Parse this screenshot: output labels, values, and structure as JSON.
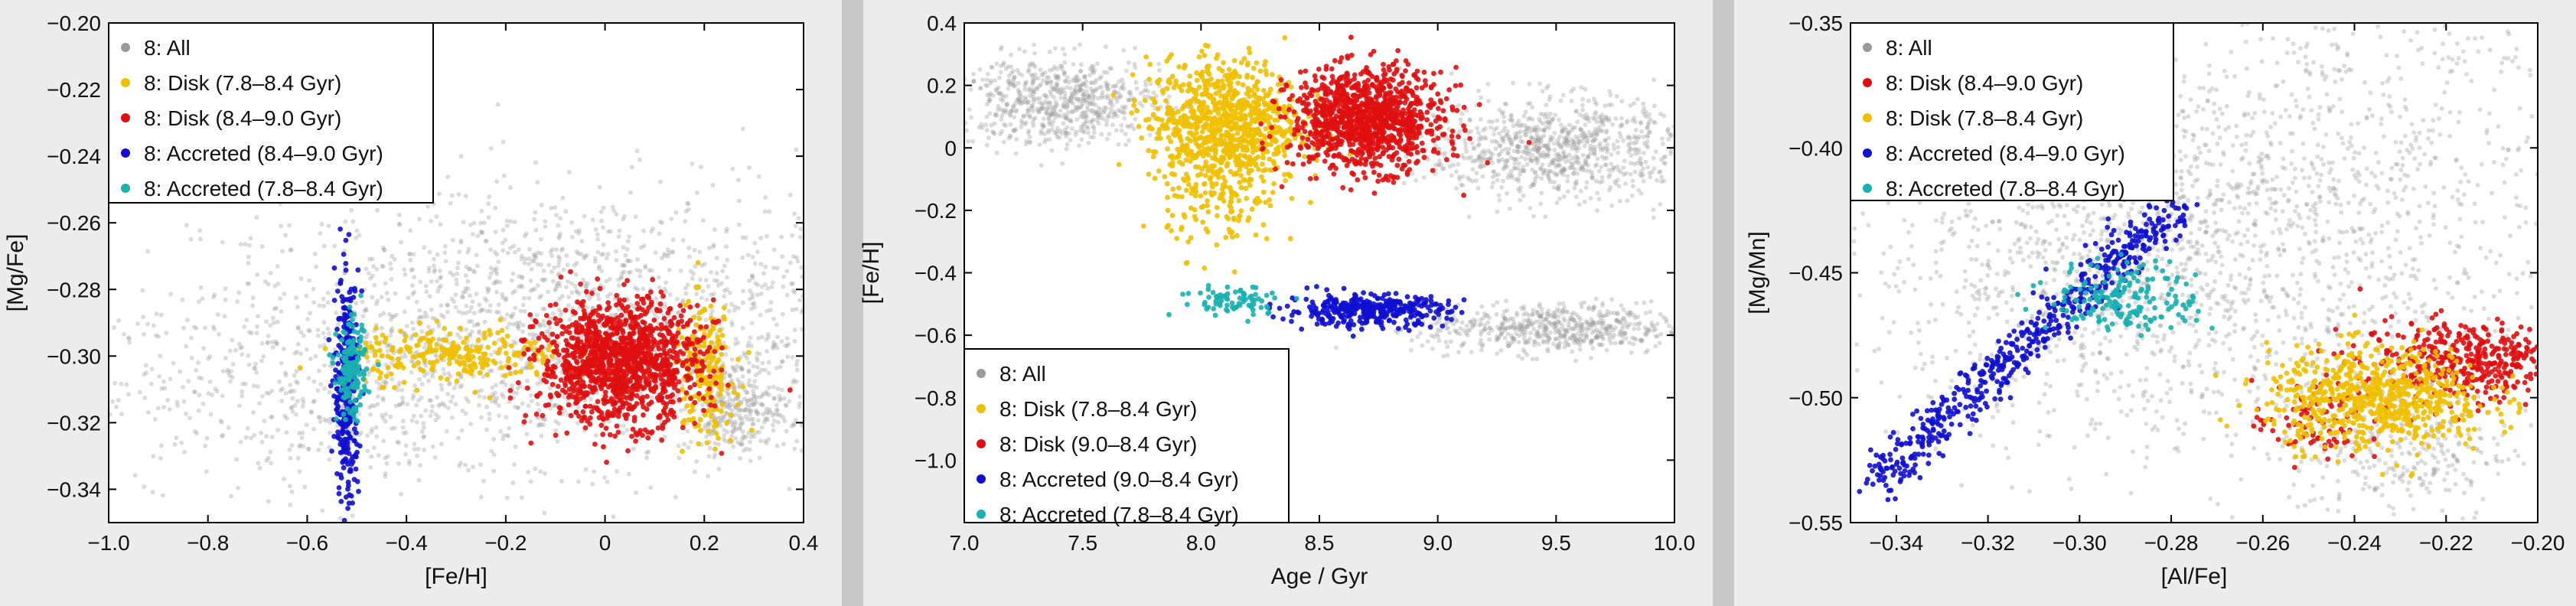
{
  "colors": {
    "all": "#9a9a9a",
    "disk_young": "#f0c000",
    "disk_old": "#e01010",
    "accreted_old": "#1010d0",
    "accreted_young": "#18b0b0"
  },
  "chart_data": [
    {
      "type": "scatter",
      "xlabel": "[Fe/H]",
      "ylabel": "[Mg/Fe]",
      "xlim": [
        -1.0,
        0.4
      ],
      "ylim": [
        -0.35,
        -0.2
      ],
      "xticks": [
        "−1.0",
        "−0.8",
        "−0.6",
        "−0.4",
        "−0.2",
        "0",
        "0.2",
        "0.4"
      ],
      "xtick_values": [
        -1.0,
        -0.8,
        -0.6,
        -0.4,
        -0.2,
        0,
        0.2,
        0.4
      ],
      "yticks": [
        "−0.20",
        "−0.22",
        "−0.24",
        "−0.26",
        "−0.28",
        "−0.30",
        "−0.32",
        "−0.34"
      ],
      "ytick_values": [
        -0.2,
        -0.22,
        -0.24,
        -0.26,
        -0.28,
        -0.3,
        -0.32,
        -0.34
      ],
      "legend_position": "top-left",
      "legend": [
        "8: All",
        "8: Disk (7.8–8.4 Gyr)",
        "8: Disk (8.4–9.0 Gyr)",
        "8: Accreted (8.4–9.0 Gyr)",
        "8: Accreted (7.8–8.4 Gyr)"
      ],
      "series": [
        {
          "name": "8: All",
          "color_key": "all",
          "clouds": [
            {
              "cx": -0.05,
              "cy": -0.29,
              "sx": 0.38,
              "sy": 0.02,
              "n": 1800
            },
            {
              "cx": 0.26,
              "cy": -0.315,
              "sx": 0.05,
              "sy": 0.007,
              "n": 300
            },
            {
              "cx": -0.55,
              "cy": -0.31,
              "sx": 0.25,
              "sy": 0.015,
              "n": 500
            }
          ]
        },
        {
          "name": "8: Disk (7.8–8.4 Gyr)",
          "color_key": "disk_young",
          "clouds": [
            {
              "cx": -0.3,
              "cy": -0.3,
              "sx": 0.11,
              "sy": 0.004,
              "n": 260
            },
            {
              "cx": 0.2,
              "cy": -0.305,
              "sx": 0.03,
              "sy": 0.01,
              "n": 200
            }
          ]
        },
        {
          "name": "8: Disk (8.4–9.0 Gyr)",
          "color_key": "disk_old",
          "clouds": [
            {
              "cx": 0.03,
              "cy": -0.302,
              "sx": 0.08,
              "sy": 0.009,
              "n": 1300
            }
          ]
        },
        {
          "name": "8: Accreted (8.4–9.0 Gyr)",
          "color_key": "accreted_old",
          "clouds": [
            {
              "cx": -0.52,
              "cy": -0.31,
              "sx": 0.012,
              "sy": 0.017,
              "n": 320
            }
          ]
        },
        {
          "name": "8: Accreted (7.8–8.4 Gyr)",
          "color_key": "accreted_young",
          "clouds": [
            {
              "cx": -0.51,
              "cy": -0.305,
              "sx": 0.015,
              "sy": 0.007,
              "n": 160
            }
          ]
        }
      ]
    },
    {
      "type": "scatter",
      "xlabel": "Age / Gyr",
      "ylabel": "[Fe/H]",
      "xlim": [
        7.0,
        10.0
      ],
      "ylim": [
        -1.2,
        0.4
      ],
      "xticks": [
        "7.0",
        "7.5",
        "8.0",
        "8.5",
        "9.0",
        "9.5",
        "10.0"
      ],
      "xtick_values": [
        7.0,
        7.5,
        8.0,
        8.5,
        9.0,
        9.5,
        10.0
      ],
      "yticks": [
        "0.4",
        "0.2",
        "0",
        "−0.2",
        "−0.4",
        "−0.6",
        "−0.8",
        "−1.0"
      ],
      "ytick_values": [
        0.4,
        0.2,
        0,
        -0.2,
        -0.4,
        -0.6,
        -0.8,
        -1.0
      ],
      "legend_position": "bottom-left",
      "legend": [
        "8: All",
        "8: Disk (7.8–8.4 Gyr)",
        "8: Disk (9.0–8.4 Gyr)",
        "8: Accreted (9.0–8.4 Gyr)",
        "8: Accreted (7.8–8.4 Gyr)"
      ],
      "series": [
        {
          "name": "8: All",
          "color_key": "all",
          "clouds": [
            {
              "cx": 7.4,
              "cy": 0.15,
              "sx": 0.22,
              "sy": 0.07,
              "n": 700
            },
            {
              "cx": 9.5,
              "cy": 0.0,
              "sx": 0.28,
              "sy": 0.08,
              "n": 900
            },
            {
              "cx": 9.5,
              "cy": -0.58,
              "sx": 0.28,
              "sy": 0.04,
              "n": 600
            }
          ]
        },
        {
          "name": "8: Disk (7.8–8.4 Gyr)",
          "color_key": "disk_young",
          "clouds": [
            {
              "cx": 8.1,
              "cy": 0.08,
              "sx": 0.16,
              "sy": 0.1,
              "n": 900
            },
            {
              "cx": 8.1,
              "cy": -0.18,
              "sx": 0.12,
              "sy": 0.08,
              "n": 120
            }
          ]
        },
        {
          "name": "8: Disk (9.0–8.4 Gyr)",
          "color_key": "disk_old",
          "clouds": [
            {
              "cx": 8.7,
              "cy": 0.09,
              "sx": 0.16,
              "sy": 0.08,
              "n": 1100
            }
          ]
        },
        {
          "name": "8: Accreted (9.0–8.4 Gyr)",
          "color_key": "accreted_old",
          "clouds": [
            {
              "cx": 8.7,
              "cy": -0.52,
              "sx": 0.17,
              "sy": 0.025,
              "n": 350
            }
          ]
        },
        {
          "name": "8: Accreted (7.8–8.4 Gyr)",
          "color_key": "accreted_young",
          "clouds": [
            {
              "cx": 8.15,
              "cy": -0.49,
              "sx": 0.12,
              "sy": 0.025,
              "n": 80
            }
          ]
        }
      ]
    },
    {
      "type": "scatter",
      "xlabel": "[Al/Fe]",
      "ylabel": "[Mg/Mn]",
      "xlim": [
        -0.35,
        -0.2
      ],
      "ylim": [
        -0.55,
        -0.35
      ],
      "xticks": [
        "−0.34",
        "−0.32",
        "−0.30",
        "−0.28",
        "−0.26",
        "−0.24",
        "−0.22",
        "−0.20"
      ],
      "xtick_values": [
        -0.34,
        -0.32,
        -0.3,
        -0.28,
        -0.26,
        -0.24,
        -0.22,
        -0.2
      ],
      "yticks": [
        "−0.35",
        "−0.40",
        "−0.45",
        "−0.50",
        "−0.55"
      ],
      "ytick_values": [
        -0.35,
        -0.4,
        -0.45,
        -0.5,
        -0.55
      ],
      "legend_position": "top-left",
      "legend": [
        "8: All",
        "8: Disk (8.4–9.0 Gyr)",
        "8: Disk (7.8–8.4 Gyr)",
        "8: Accreted (8.4–9.0 Gyr)",
        "8: Accreted (7.8–8.4 Gyr)"
      ],
      "series": [
        {
          "name": "8: All",
          "color_key": "all",
          "clouds": [
            {
              "cx": -0.29,
              "cy": -0.44,
              "sx": 0.03,
              "sy": 0.04,
              "n": 1500
            },
            {
              "cx": -0.24,
              "cy": -0.42,
              "sx": 0.03,
              "sy": 0.05,
              "n": 900
            },
            {
              "cx": -0.23,
              "cy": -0.52,
              "sx": 0.012,
              "sy": 0.015,
              "n": 300
            }
          ]
        },
        {
          "name": "8: Disk (8.4–9.0 Gyr)",
          "color_key": "disk_old",
          "clouds": [
            {
              "cx": -0.215,
              "cy": -0.485,
              "sx": 0.012,
              "sy": 0.008,
              "n": 450
            },
            {
              "cx": -0.25,
              "cy": -0.51,
              "sx": 0.006,
              "sy": 0.008,
              "n": 80
            }
          ]
        },
        {
          "name": "8: Disk (7.8–8.4 Gyr)",
          "color_key": "disk_young",
          "clouds": [
            {
              "cx": -0.235,
              "cy": -0.5,
              "sx": 0.012,
              "sy": 0.01,
              "n": 700
            }
          ]
        },
        {
          "name": "8: Accreted (8.4–9.0 Gyr)",
          "color_key": "accreted_old",
          "clouds": [
            {
              "line": true,
              "x0": -0.345,
              "y0": -0.535,
              "x1": -0.28,
              "y1": -0.425,
              "sx": 0.003,
              "sy": 0.004,
              "n": 550
            }
          ]
        },
        {
          "name": "8: Accreted (7.8–8.4 Gyr)",
          "color_key": "accreted_young",
          "clouds": [
            {
              "cx": -0.29,
              "cy": -0.46,
              "sx": 0.008,
              "sy": 0.007,
              "n": 180
            }
          ]
        }
      ]
    }
  ]
}
